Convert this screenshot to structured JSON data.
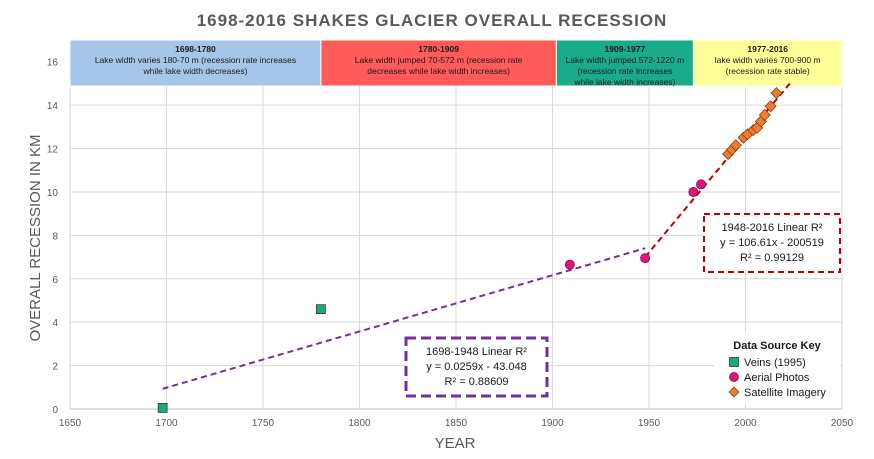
{
  "chart_data": {
    "type": "scatter",
    "title": "1698-2016 SHAKES GLACIER OVERALL RECESSION",
    "xlabel": "YEAR",
    "ylabel": "OVERALL RECESSION IN KM",
    "xlim": [
      1650,
      2050
    ],
    "ylim": [
      0,
      17
    ],
    "xticks": [
      1650,
      1700,
      1750,
      1800,
      1850,
      1900,
      1950,
      2000,
      2050
    ],
    "yticks": [
      0,
      2,
      4,
      6,
      8,
      10,
      12,
      14,
      16
    ],
    "grid": true,
    "periods": [
      {
        "x0": 1650,
        "x1": 1780,
        "title": "1698-1780",
        "text": "Lake width varies 180-70 m (recession rate increases while lake width decreases)",
        "color": "#a5c6e8"
      },
      {
        "x0": 1780,
        "x1": 1902,
        "title": "1780-1909",
        "text": "Lake width jumped 70-572 m (recession rate decreases while lake width increases)",
        "color": "#ff5b5b"
      },
      {
        "x0": 1902,
        "x1": 1973,
        "title": "1909-1977",
        "text": "Lake width jumped 572-1220 m (recession rate increases while lake width increases)",
        "color": "#1aab8a"
      },
      {
        "x0": 1973,
        "x1": 2050,
        "title": "1977-2016",
        "text": "lake width varies 700-900 m (recession rate stable)",
        "color": "#ffff99"
      }
    ],
    "series": [
      {
        "name": "Veins (1995)",
        "marker": "square",
        "color": "#1aaa72",
        "points": [
          [
            1698,
            0.05
          ],
          [
            1780,
            4.6
          ]
        ]
      },
      {
        "name": "Aerial Photos",
        "marker": "circle",
        "color": "#e0157a",
        "points": [
          [
            1909,
            6.65
          ],
          [
            1948,
            6.95
          ],
          [
            1973,
            10.0
          ],
          [
            1977,
            10.35
          ]
        ]
      },
      {
        "name": "Satellite Imagery",
        "marker": "diamond",
        "color": "#ed7d31",
        "points": [
          [
            1991,
            11.75
          ],
          [
            1993,
            11.95
          ],
          [
            1995,
            12.15
          ],
          [
            1999,
            12.5
          ],
          [
            2001,
            12.65
          ],
          [
            2004,
            12.85
          ],
          [
            2006,
            12.95
          ],
          [
            2008,
            13.25
          ],
          [
            2010,
            13.55
          ],
          [
            2013,
            13.95
          ],
          [
            2016,
            14.55
          ]
        ]
      }
    ],
    "trendlines": [
      {
        "x": [
          1698,
          1948
        ],
        "equation": "y = 0.0259x - 43.048",
        "label": "1698-1948 Linear R²",
        "r2": "R² = 0.88609",
        "color": "#7030a0"
      },
      {
        "x": [
          1948,
          2023
        ],
        "equation": "y = 106.61x - 200519",
        "label": "1948-2016 Linear R²",
        "r2": "R² = 0.99129",
        "color": "#c00000"
      }
    ],
    "legend_title": "Data Source Key",
    "legend_position": "bottom-right"
  }
}
